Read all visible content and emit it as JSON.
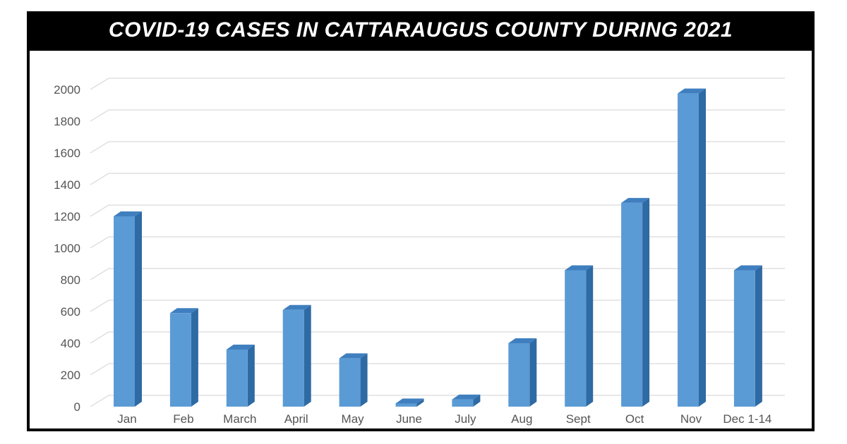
{
  "chart_data": {
    "type": "bar",
    "title": "COVID-19 CASES IN CATTARAUGUS COUNTY DURING 2021",
    "xlabel": "",
    "ylabel": "",
    "categories": [
      "Jan",
      "Feb",
      "March",
      "April",
      "May",
      "June",
      "July",
      "Aug",
      "Sept",
      "Oct",
      "Nov",
      "Dec 1-14"
    ],
    "values": [
      1200,
      590,
      360,
      610,
      305,
      20,
      45,
      400,
      860,
      1285,
      1975,
      860
    ],
    "ylim": [
      0,
      2000
    ],
    "yticks": [
      0,
      200,
      400,
      600,
      800,
      1000,
      1200,
      1400,
      1600,
      1800,
      2000
    ],
    "grid": true,
    "legend": "none",
    "colors": {
      "bar_front": "#5b9bd5",
      "bar_side": "#2e6aa3",
      "bar_top": "#3f7fbf",
      "gridline": "#d9d9d9",
      "title_bg": "#000000",
      "title_text": "#ffffff"
    }
  }
}
